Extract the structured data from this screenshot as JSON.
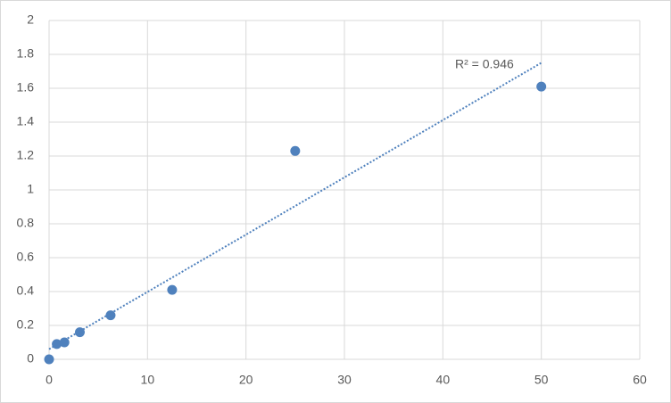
{
  "chart_data": {
    "type": "scatter",
    "series": [
      {
        "color": "#4f81bd",
        "x": [
          0,
          0.78,
          1.56,
          3.125,
          6.25,
          12.5,
          25,
          50
        ],
        "values": [
          0,
          0.09,
          0.1,
          0.16,
          0.26,
          0.41,
          1.23,
          1.61
        ]
      }
    ],
    "trendline": {
      "color": "#4f81bd",
      "x": [
        0,
        50
      ],
      "values": [
        0.06,
        1.75
      ]
    },
    "annotation": "R² = 0.946",
    "xlim": [
      0,
      60
    ],
    "xticks": [
      0,
      10,
      20,
      30,
      40,
      50,
      60
    ],
    "ylim": [
      0,
      2
    ],
    "yticks": [
      0,
      0.2,
      0.4,
      0.6,
      0.8,
      1,
      1.2,
      1.4,
      1.6,
      1.8,
      2
    ],
    "grid": true
  }
}
